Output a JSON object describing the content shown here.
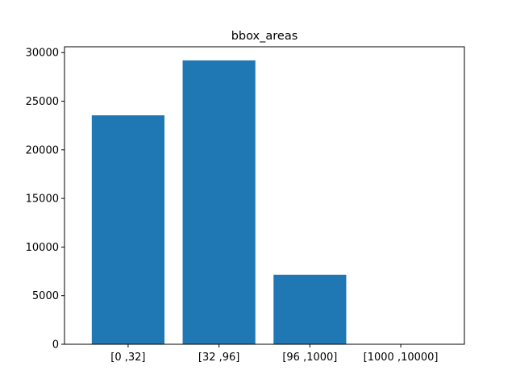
{
  "chart_data": {
    "type": "bar",
    "title": "bbox_areas",
    "xlabel": "",
    "ylabel": "",
    "categories": [
      "[0 ,32]",
      "[32 ,96]",
      "[96 ,1000]",
      "[1000 ,10000]"
    ],
    "values": [
      23550,
      29200,
      7150,
      0
    ],
    "ylim": [
      0,
      30600
    ],
    "yticks": [
      0,
      5000,
      10000,
      15000,
      20000,
      25000,
      30000
    ],
    "ytick_labels": [
      "0",
      "5000",
      "10000",
      "15000",
      "20000",
      "25000",
      "30000"
    ],
    "bar_color": "#1f77b4",
    "grid": false,
    "legend": "none"
  }
}
